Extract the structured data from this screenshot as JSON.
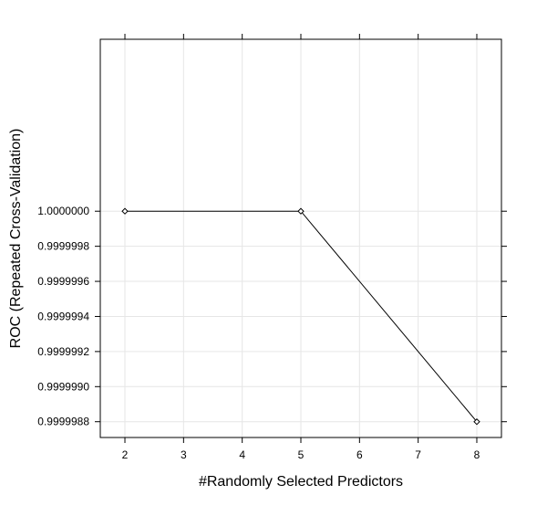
{
  "chart_data": {
    "type": "line",
    "xlabel": "#Randomly Selected Predictors",
    "ylabel": "ROC (Repeated Cross-Validation)",
    "x": [
      2,
      5,
      8
    ],
    "series": [
      {
        "values": [
          1.0,
          1.0,
          0.9999988
        ]
      }
    ],
    "xlim": [
      1.58,
      8.42
    ],
    "ylim": [
      0.99999871,
      1.00000098
    ],
    "x_ticks": [
      2,
      3,
      4,
      5,
      6,
      7,
      8
    ],
    "x_tick_labels": [
      "2",
      "3",
      "4",
      "5",
      "6",
      "7",
      "8"
    ],
    "y_ticks": [
      1.0,
      0.9999998,
      0.9999996,
      0.9999994,
      0.9999992,
      0.999999,
      0.9999988
    ],
    "y_tick_labels": [
      "1.0000000",
      "0.9999998",
      "0.9999996",
      "0.9999994",
      "0.9999992",
      "0.9999990",
      "0.9999988"
    ],
    "grid": true,
    "line_color": "#000000",
    "grid_color": "#e6e6e6",
    "marker": "open-diamond"
  }
}
